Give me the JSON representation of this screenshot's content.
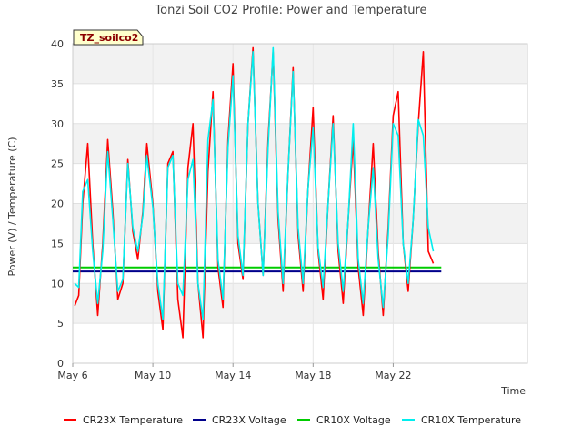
{
  "chart_data": {
    "type": "line",
    "title": "Tonzi Soil CO2 Profile: Power and Temperature",
    "xlabel": "Time",
    "ylabel": "Power (V) / Temperature (C)",
    "station_label": "TZ_soilco2",
    "ylim": [
      0,
      40
    ],
    "xlim": [
      0,
      22.7
    ],
    "x_unit": "days since May 6",
    "x_ticks": [
      {
        "x": 0,
        "label": "May 6"
      },
      {
        "x": 4,
        "label": "May 10"
      },
      {
        "x": 8,
        "label": "May 14"
      },
      {
        "x": 12,
        "label": "May 18"
      },
      {
        "x": 16,
        "label": "May 22"
      }
    ],
    "y_ticks": [
      0,
      5,
      10,
      15,
      20,
      25,
      30,
      35,
      40
    ],
    "grid": true,
    "legend_position": "bottom",
    "series": [
      {
        "name": "CR23X Temperature",
        "color": "#ff0000",
        "x": [
          0.1,
          0.3,
          0.5,
          0.75,
          1.0,
          1.25,
          1.5,
          1.75,
          2.0,
          2.25,
          2.5,
          2.75,
          3.0,
          3.25,
          3.5,
          3.7,
          4.0,
          4.25,
          4.5,
          4.75,
          5.0,
          5.25,
          5.5,
          5.75,
          6.0,
          6.25,
          6.5,
          6.75,
          7.0,
          7.25,
          7.5,
          7.75,
          8.0,
          8.25,
          8.5,
          8.75,
          9.0,
          9.25,
          9.5,
          9.75,
          10.0,
          10.25,
          10.5,
          10.75,
          11.0,
          11.25,
          11.5,
          11.75,
          12.0,
          12.25,
          12.5,
          12.75,
          13.0,
          13.25,
          13.5,
          13.75,
          14.0,
          14.25,
          14.5,
          14.75,
          15.0,
          15.25,
          15.5,
          15.75,
          16.0,
          16.25,
          16.5,
          16.75,
          17.0,
          17.25,
          17.5,
          17.75,
          18.0,
          18.25,
          18.4
        ],
        "y": [
          7.2,
          8.5,
          20.0,
          27.5,
          15.0,
          6.0,
          15.0,
          28.0,
          19.0,
          8.0,
          10.0,
          25.5,
          16.5,
          13.0,
          19.0,
          27.5,
          20.0,
          9.0,
          4.2,
          25.0,
          26.5,
          8.0,
          3.2,
          24.5,
          30.0,
          10.0,
          3.2,
          24.0,
          34.0,
          12.0,
          7.0,
          28.0,
          37.5,
          15.0,
          10.5,
          30.0,
          39.5,
          20.0,
          11.0,
          28.0,
          39.0,
          18.0,
          9.0,
          24.0,
          37.0,
          16.0,
          9.0,
          22.0,
          32.0,
          14.0,
          8.0,
          20.0,
          31.0,
          14.0,
          7.5,
          18.0,
          28.0,
          12.0,
          6.0,
          17.0,
          27.5,
          14.0,
          6.0,
          17.0,
          31.0,
          34.0,
          15.0,
          9.0,
          18.0,
          30.0,
          39.0,
          14.0,
          12.5,
          null,
          null
        ]
      },
      {
        "name": "CR23X Voltage",
        "color": "#00008b",
        "x": [
          0,
          18.4
        ],
        "y": [
          11.5,
          11.5
        ]
      },
      {
        "name": "CR10X Voltage",
        "color": "#00cc00",
        "x": [
          0,
          18.4
        ],
        "y": [
          12.0,
          12.0
        ]
      },
      {
        "name": "CR10X Temperature",
        "color": "#00eeee",
        "x": [
          0.1,
          0.3,
          0.5,
          0.75,
          1.0,
          1.25,
          1.5,
          1.75,
          2.0,
          2.25,
          2.5,
          2.75,
          3.0,
          3.25,
          3.5,
          3.7,
          4.0,
          4.25,
          4.5,
          4.75,
          5.0,
          5.25,
          5.5,
          5.75,
          6.0,
          6.25,
          6.5,
          6.75,
          7.0,
          7.25,
          7.5,
          7.75,
          8.0,
          8.25,
          8.5,
          8.75,
          9.0,
          9.25,
          9.5,
          9.75,
          10.0,
          10.25,
          10.5,
          10.75,
          11.0,
          11.25,
          11.5,
          11.75,
          12.0,
          12.25,
          12.5,
          12.75,
          13.0,
          13.25,
          13.5,
          13.75,
          14.0,
          14.25,
          14.5,
          14.75,
          15.0,
          15.25,
          15.5,
          15.75,
          16.0,
          16.25,
          16.5,
          16.75,
          17.0,
          17.25,
          17.5,
          17.75,
          18.0,
          18.25,
          18.4
        ],
        "y": [
          10.0,
          9.5,
          21.5,
          23.0,
          14.0,
          7.5,
          14.0,
          26.5,
          18.0,
          9.0,
          10.5,
          25.0,
          17.0,
          14.0,
          18.5,
          26.0,
          19.5,
          10.0,
          5.5,
          24.5,
          26.0,
          10.0,
          8.5,
          23.0,
          25.5,
          10.0,
          5.5,
          28.0,
          33.0,
          13.0,
          8.0,
          27.0,
          36.0,
          16.0,
          11.0,
          30.0,
          39.0,
          20.0,
          11.0,
          27.0,
          39.5,
          19.0,
          10.0,
          24.0,
          36.5,
          17.0,
          10.0,
          22.0,
          29.5,
          14.5,
          9.5,
          20.0,
          30.0,
          15.0,
          9.0,
          18.0,
          30.0,
          13.0,
          7.5,
          17.0,
          24.5,
          13.0,
          7.0,
          16.0,
          30.0,
          28.5,
          15.0,
          10.0,
          18.0,
          30.5,
          28.5,
          17.0,
          14.0,
          null,
          null
        ]
      }
    ]
  }
}
